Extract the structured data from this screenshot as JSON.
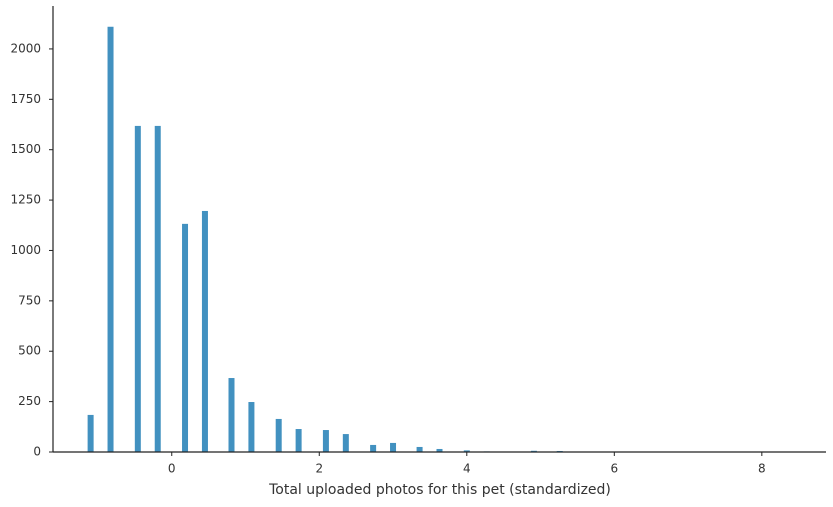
{
  "chart_data": {
    "type": "bar",
    "x_label": "Total uploaded photos for this pet (standardized)",
    "x": [
      -1.1,
      -0.83,
      -0.46,
      -0.19,
      0.18,
      0.45,
      0.81,
      1.08,
      1.45,
      1.72,
      2.09,
      2.36,
      2.73,
      3.0,
      3.36,
      3.63,
      4.0,
      4.27,
      4.91,
      5.26
    ],
    "values": [
      184,
      2110,
      1618,
      1618,
      1132,
      1196,
      367,
      248,
      164,
      114,
      109,
      89,
      35,
      45,
      25,
      15,
      8,
      3,
      6,
      5
    ],
    "color": "#4291c0",
    "xlim": [
      -1.61,
      8.87
    ],
    "xticks": [
      0,
      2,
      4,
      6,
      8
    ],
    "ylim": [
      0,
      2213
    ],
    "yticks": [
      0,
      250,
      500,
      750,
      1000,
      1250,
      1500,
      1750,
      2000
    ]
  }
}
